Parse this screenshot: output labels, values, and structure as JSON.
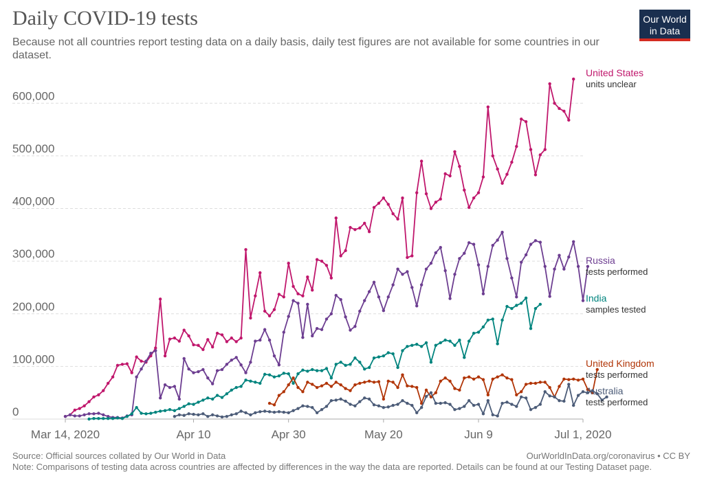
{
  "header": {
    "title": "Daily COVID-19 tests",
    "subtitle": "Because not all countries report testing data on a daily basis, daily test figures are not available for some countries in our dataset.",
    "logo_line1": "Our World",
    "logo_line2": "in Data"
  },
  "footer": {
    "source": "Source: Official sources collated by Our World in Data",
    "url": "OurWorldInData.org/coronavirus • CC BY",
    "note": "Note: Comparisons of testing data across countries are affected by differences in the way the data are reported. Details can be found at our Testing Dataset page."
  },
  "colors": {
    "grid": "#dddddd",
    "axis": "#aaaaaa"
  },
  "chart_data": {
    "type": "line",
    "title": "Daily COVID-19 tests",
    "xlabel": "",
    "ylabel": "",
    "x_range": [
      0,
      109
    ],
    "ylim": [
      0,
      650000
    ],
    "yticks": [
      0,
      100000,
      200000,
      300000,
      400000,
      500000,
      600000
    ],
    "ytick_labels": [
      "0",
      "100,000",
      "200,000",
      "300,000",
      "400,000",
      "500,000",
      "600,000"
    ],
    "xticks": [
      0,
      27,
      47,
      67,
      87,
      109
    ],
    "xtick_labels": [
      "Mar 14, 2020",
      "Apr 10",
      "Apr 30",
      "May 20",
      "Jun 9",
      "Jul 1, 2020"
    ],
    "x_unit": "days since Mar 14, 2020",
    "grid": true,
    "series": [
      {
        "name": "United States",
        "sublabel": "units unclear",
        "color": "#c0176c",
        "x_start": 0,
        "values": [
          5000,
          8000,
          17000,
          20000,
          25000,
          33000,
          42000,
          46000,
          54000,
          68000,
          80000,
          102000,
          104000,
          105000,
          88000,
          118000,
          110000,
          108000,
          120000,
          135000,
          228000,
          120000,
          152000,
          154000,
          148000,
          169000,
          158000,
          141000,
          140000,
          132000,
          151000,
          137000,
          163000,
          160000,
          147000,
          154000,
          147000,
          154000,
          322000,
          192000,
          234000,
          278000,
          205000,
          196000,
          208000,
          237000,
          232000,
          296000,
          252000,
          238000,
          234000,
          270000,
          245000,
          303000,
          300000,
          292000,
          268000,
          382000,
          310000,
          320000,
          364000,
          360000,
          363000,
          372000,
          356000,
          402000,
          410000,
          420000,
          408000,
          390000,
          380000,
          420000,
          307000,
          310000,
          430000,
          490000,
          428000,
          400000,
          412000,
          418000,
          466000,
          462000,
          508000,
          480000,
          435000,
          402000,
          420000,
          430000,
          460000,
          593000,
          500000,
          475000,
          448000,
          465000,
          488000,
          518000,
          570000,
          565000,
          512000,
          464000,
          502000,
          512000,
          637000,
          600000,
          590000,
          585000,
          568000,
          646000
        ]
      },
      {
        "name": "Russia",
        "sublabel": "tests performed",
        "color": "#6d3e91",
        "x_start": 0,
        "values": [
          5000,
          8000,
          6000,
          6000,
          8000,
          10000,
          10000,
          11000,
          8000,
          5000,
          3000,
          3000,
          2000,
          6000,
          8000,
          80000,
          95000,
          110000,
          125000,
          130000,
          40000,
          65000,
          60000,
          62000,
          38000,
          115000,
          95000,
          88000,
          90000,
          94000,
          78000,
          67000,
          92000,
          94000,
          104000,
          112000,
          117000,
          103000,
          88000,
          108000,
          148000,
          150000,
          170000,
          150000,
          120000,
          103000,
          165000,
          195000,
          225000,
          220000,
          155000,
          218000,
          158000,
          172000,
          170000,
          190000,
          200000,
          235000,
          227000,
          194000,
          169000,
          176000,
          205000,
          225000,
          242000,
          260000,
          232000,
          206000,
          232000,
          255000,
          285000,
          275000,
          280000,
          250000,
          215000,
          255000,
          285000,
          296000,
          316000,
          326000,
          282000,
          229000,
          275000,
          305000,
          315000,
          335000,
          332000,
          293000,
          238000,
          290000,
          330000,
          340000,
          355000,
          305000,
          268000,
          232000,
          298000,
          312000,
          332000,
          339000,
          336000,
          290000,
          233000,
          285000,
          311000,
          285000,
          308000,
          337000,
          290000,
          225000,
          290000
        ]
      },
      {
        "name": "India",
        "sublabel": "samples tested",
        "color": "#00847e",
        "x_start": 5,
        "values": [
          0,
          1000,
          1000,
          1000,
          1000,
          1000,
          2000,
          1000,
          5000,
          10000,
          22000,
          11000,
          10000,
          11000,
          13000,
          15000,
          16000,
          18000,
          16000,
          20000,
          24000,
          29000,
          28000,
          32000,
          36000,
          40000,
          38000,
          45000,
          41000,
          48000,
          55000,
          60000,
          62000,
          74000,
          72000,
          70000,
          68000,
          85000,
          84000,
          80000,
          82000,
          87000,
          86000,
          68000,
          86000,
          93000,
          91000,
          94000,
          92000,
          92000,
          96000,
          78000,
          104000,
          108000,
          102000,
          104000,
          116000,
          108000,
          95000,
          98000,
          116000,
          118000,
          120000,
          126000,
          124000,
          98000,
          130000,
          138000,
          140000,
          142000,
          138000,
          145000,
          108000,
          140000,
          145000,
          150000,
          148000,
          140000,
          150000,
          117000,
          148000,
          163000,
          165000,
          175000,
          188000,
          190000,
          143000,
          188000,
          214000,
          210000,
          216000,
          220000,
          230000,
          172000,
          210000,
          218000
        ]
      },
      {
        "name": "United Kingdom",
        "sublabel": "tests performed",
        "color": "#b13507",
        "x_start": 43,
        "values": [
          30000,
          27000,
          45000,
          52000,
          65000,
          78000,
          60000,
          52000,
          70000,
          66000,
          60000,
          63000,
          68000,
          62000,
          70000,
          65000,
          58000,
          54000,
          65000,
          68000,
          70000,
          72000,
          70000,
          71000,
          38000,
          72000,
          70000,
          60000,
          84000,
          63000,
          62000,
          60000,
          30000,
          55000,
          42000,
          50000,
          72000,
          78000,
          72000,
          58000,
          55000,
          78000,
          80000,
          76000,
          80000,
          75000,
          46000,
          76000,
          80000,
          84000,
          78000,
          75000,
          46000,
          52000,
          66000,
          68000,
          68000,
          70000,
          70000,
          60000,
          42000,
          62000,
          76000,
          75000,
          76000,
          74000,
          76000,
          56000,
          50000,
          94000
        ]
      },
      {
        "name": "Australia",
        "sublabel": "tests performed",
        "color": "#4c5c78",
        "x_start": 23,
        "values": [
          5000,
          8000,
          7000,
          10000,
          9000,
          8000,
          10000,
          5000,
          8000,
          6000,
          4000,
          5000,
          8000,
          10000,
          15000,
          12000,
          8000,
          12000,
          14000,
          15000,
          14000,
          13000,
          14000,
          13000,
          12000,
          16000,
          20000,
          25000,
          24000,
          22000,
          12000,
          18000,
          24000,
          35000,
          36000,
          38000,
          34000,
          28000,
          25000,
          33000,
          40000,
          38000,
          27000,
          25000,
          22000,
          23000,
          26000,
          28000,
          35000,
          30000,
          26000,
          12000,
          22000,
          43000,
          50000,
          30000,
          30000,
          31000,
          28000,
          18000,
          20000,
          24000,
          35000,
          26000,
          28000,
          10000,
          35000,
          8000,
          6000,
          30000,
          32000,
          28000,
          24000,
          42000,
          40000,
          18000,
          22000,
          28000,
          52000,
          44000,
          42000,
          35000,
          34000,
          66000,
          26000,
          45000,
          52000,
          50000,
          54000,
          48000,
          36000,
          42000
        ]
      }
    ]
  }
}
